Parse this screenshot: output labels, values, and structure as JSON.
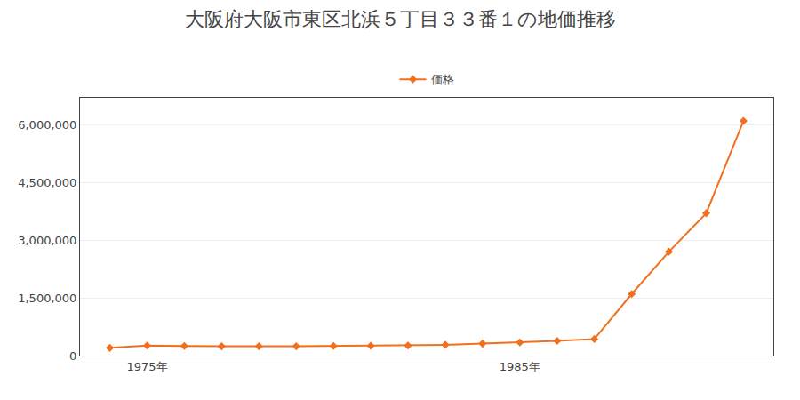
{
  "chart_data": {
    "type": "line",
    "title": "大阪府大阪市東区北浜５丁目３３番１の地価推移",
    "x": [
      1974,
      1975,
      1976,
      1977,
      1978,
      1979,
      1980,
      1981,
      1982,
      1983,
      1984,
      1985,
      1986,
      1987,
      1988,
      1989,
      1990,
      1991
    ],
    "series": [
      {
        "name": "価格",
        "color": "#f07020",
        "marker": "diamond",
        "line_style": "solid",
        "values": [
          200000,
          260000,
          250000,
          240000,
          240000,
          240000,
          250000,
          255000,
          260000,
          280000,
          310000,
          340000,
          380000,
          430000,
          1600000,
          2700000,
          3700000,
          6100000
        ]
      }
    ],
    "xlim": [
      1973.2,
      1991.8
    ],
    "xticks": [
      {
        "value": 1975,
        "label": "1975年"
      },
      {
        "value": 1985,
        "label": "1985年"
      }
    ],
    "ylim": [
      0,
      6700000
    ],
    "yticks": [
      0,
      {
        "value": 1500000,
        "label": "1,500,000"
      },
      {
        "value": 3000000,
        "label": "3,000,000"
      },
      {
        "value": 4500000,
        "label": "4,500,000"
      },
      {
        "value": 6000000,
        "label": "6,000,000"
      }
    ],
    "grid": true,
    "legend": "top"
  }
}
